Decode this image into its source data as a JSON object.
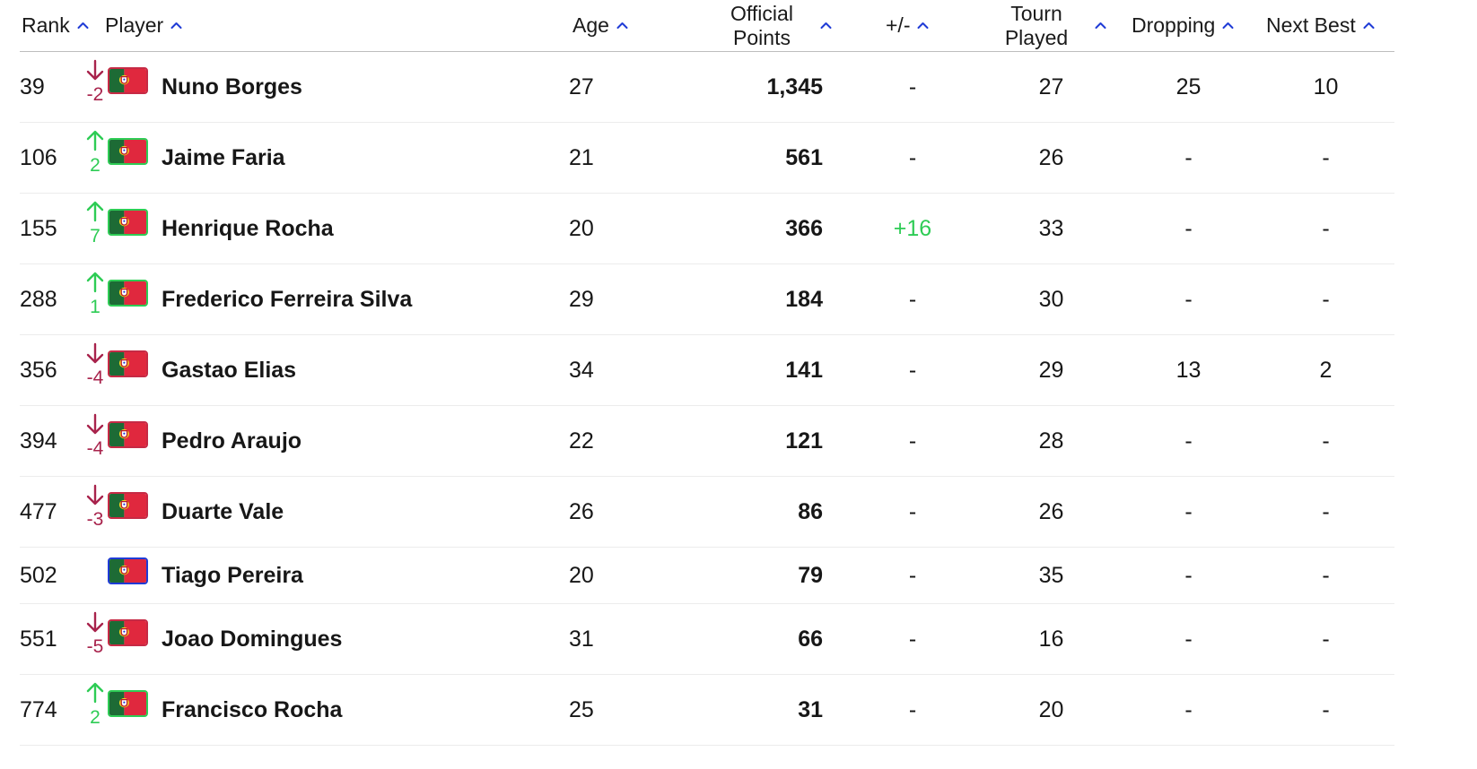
{
  "columns": {
    "rank": "Rank",
    "player": "Player",
    "age": "Age",
    "points_line1": "Official",
    "points_line2": "Points",
    "plusminus": "+/-",
    "tourn_line1": "Tourn",
    "tourn_line2": "Played",
    "dropping": "Dropping",
    "next_best": "Next Best"
  },
  "colors": {
    "sort_caret": "#1f3bd6",
    "rank_up": "#2ecc55",
    "rank_down": "#a8234c",
    "flag_green": "#1d6b35",
    "flag_red": "#e0283e"
  },
  "players": [
    {
      "rank": "39",
      "move_dir": "down",
      "move": "-2",
      "flag": "portugal-flag",
      "name": "Nuno Borges",
      "age": "27",
      "points": "1,345",
      "plusminus": "-",
      "tourn_played": "27",
      "dropping": "25",
      "next_best": "10"
    },
    {
      "rank": "106",
      "move_dir": "up",
      "move": "2",
      "flag": "portugal-flag",
      "name": "Jaime Faria",
      "age": "21",
      "points": "561",
      "plusminus": "-",
      "tourn_played": "26",
      "dropping": "-",
      "next_best": "-"
    },
    {
      "rank": "155",
      "move_dir": "up",
      "move": "7",
      "flag": "portugal-flag",
      "name": "Henrique Rocha",
      "age": "20",
      "points": "366",
      "plusminus": "+16",
      "tourn_played": "33",
      "dropping": "-",
      "next_best": "-"
    },
    {
      "rank": "288",
      "move_dir": "up",
      "move": "1",
      "flag": "portugal-flag",
      "name": "Frederico Ferreira Silva",
      "age": "29",
      "points": "184",
      "plusminus": "-",
      "tourn_played": "30",
      "dropping": "-",
      "next_best": "-"
    },
    {
      "rank": "356",
      "move_dir": "down",
      "move": "-4",
      "flag": "portugal-flag",
      "name": "Gastao Elias",
      "age": "34",
      "points": "141",
      "plusminus": "-",
      "tourn_played": "29",
      "dropping": "13",
      "next_best": "2"
    },
    {
      "rank": "394",
      "move_dir": "down",
      "move": "-4",
      "flag": "portugal-flag",
      "name": "Pedro Araujo",
      "age": "22",
      "points": "121",
      "plusminus": "-",
      "tourn_played": "28",
      "dropping": "-",
      "next_best": "-"
    },
    {
      "rank": "477",
      "move_dir": "down",
      "move": "-3",
      "flag": "portugal-flag",
      "name": "Duarte Vale",
      "age": "26",
      "points": "86",
      "plusminus": "-",
      "tourn_played": "26",
      "dropping": "-",
      "next_best": "-"
    },
    {
      "rank": "502",
      "move_dir": "none",
      "move": "",
      "flag": "portugal-flag",
      "name": "Tiago Pereira",
      "age": "20",
      "points": "79",
      "plusminus": "-",
      "tourn_played": "35",
      "dropping": "-",
      "next_best": "-"
    },
    {
      "rank": "551",
      "move_dir": "down",
      "move": "-5",
      "flag": "portugal-flag",
      "name": "Joao Domingues",
      "age": "31",
      "points": "66",
      "plusminus": "-",
      "tourn_played": "16",
      "dropping": "-",
      "next_best": "-"
    },
    {
      "rank": "774",
      "move_dir": "up",
      "move": "2",
      "flag": "portugal-flag",
      "name": "Francisco Rocha",
      "age": "25",
      "points": "31",
      "plusminus": "-",
      "tourn_played": "20",
      "dropping": "-",
      "next_best": "-"
    }
  ]
}
